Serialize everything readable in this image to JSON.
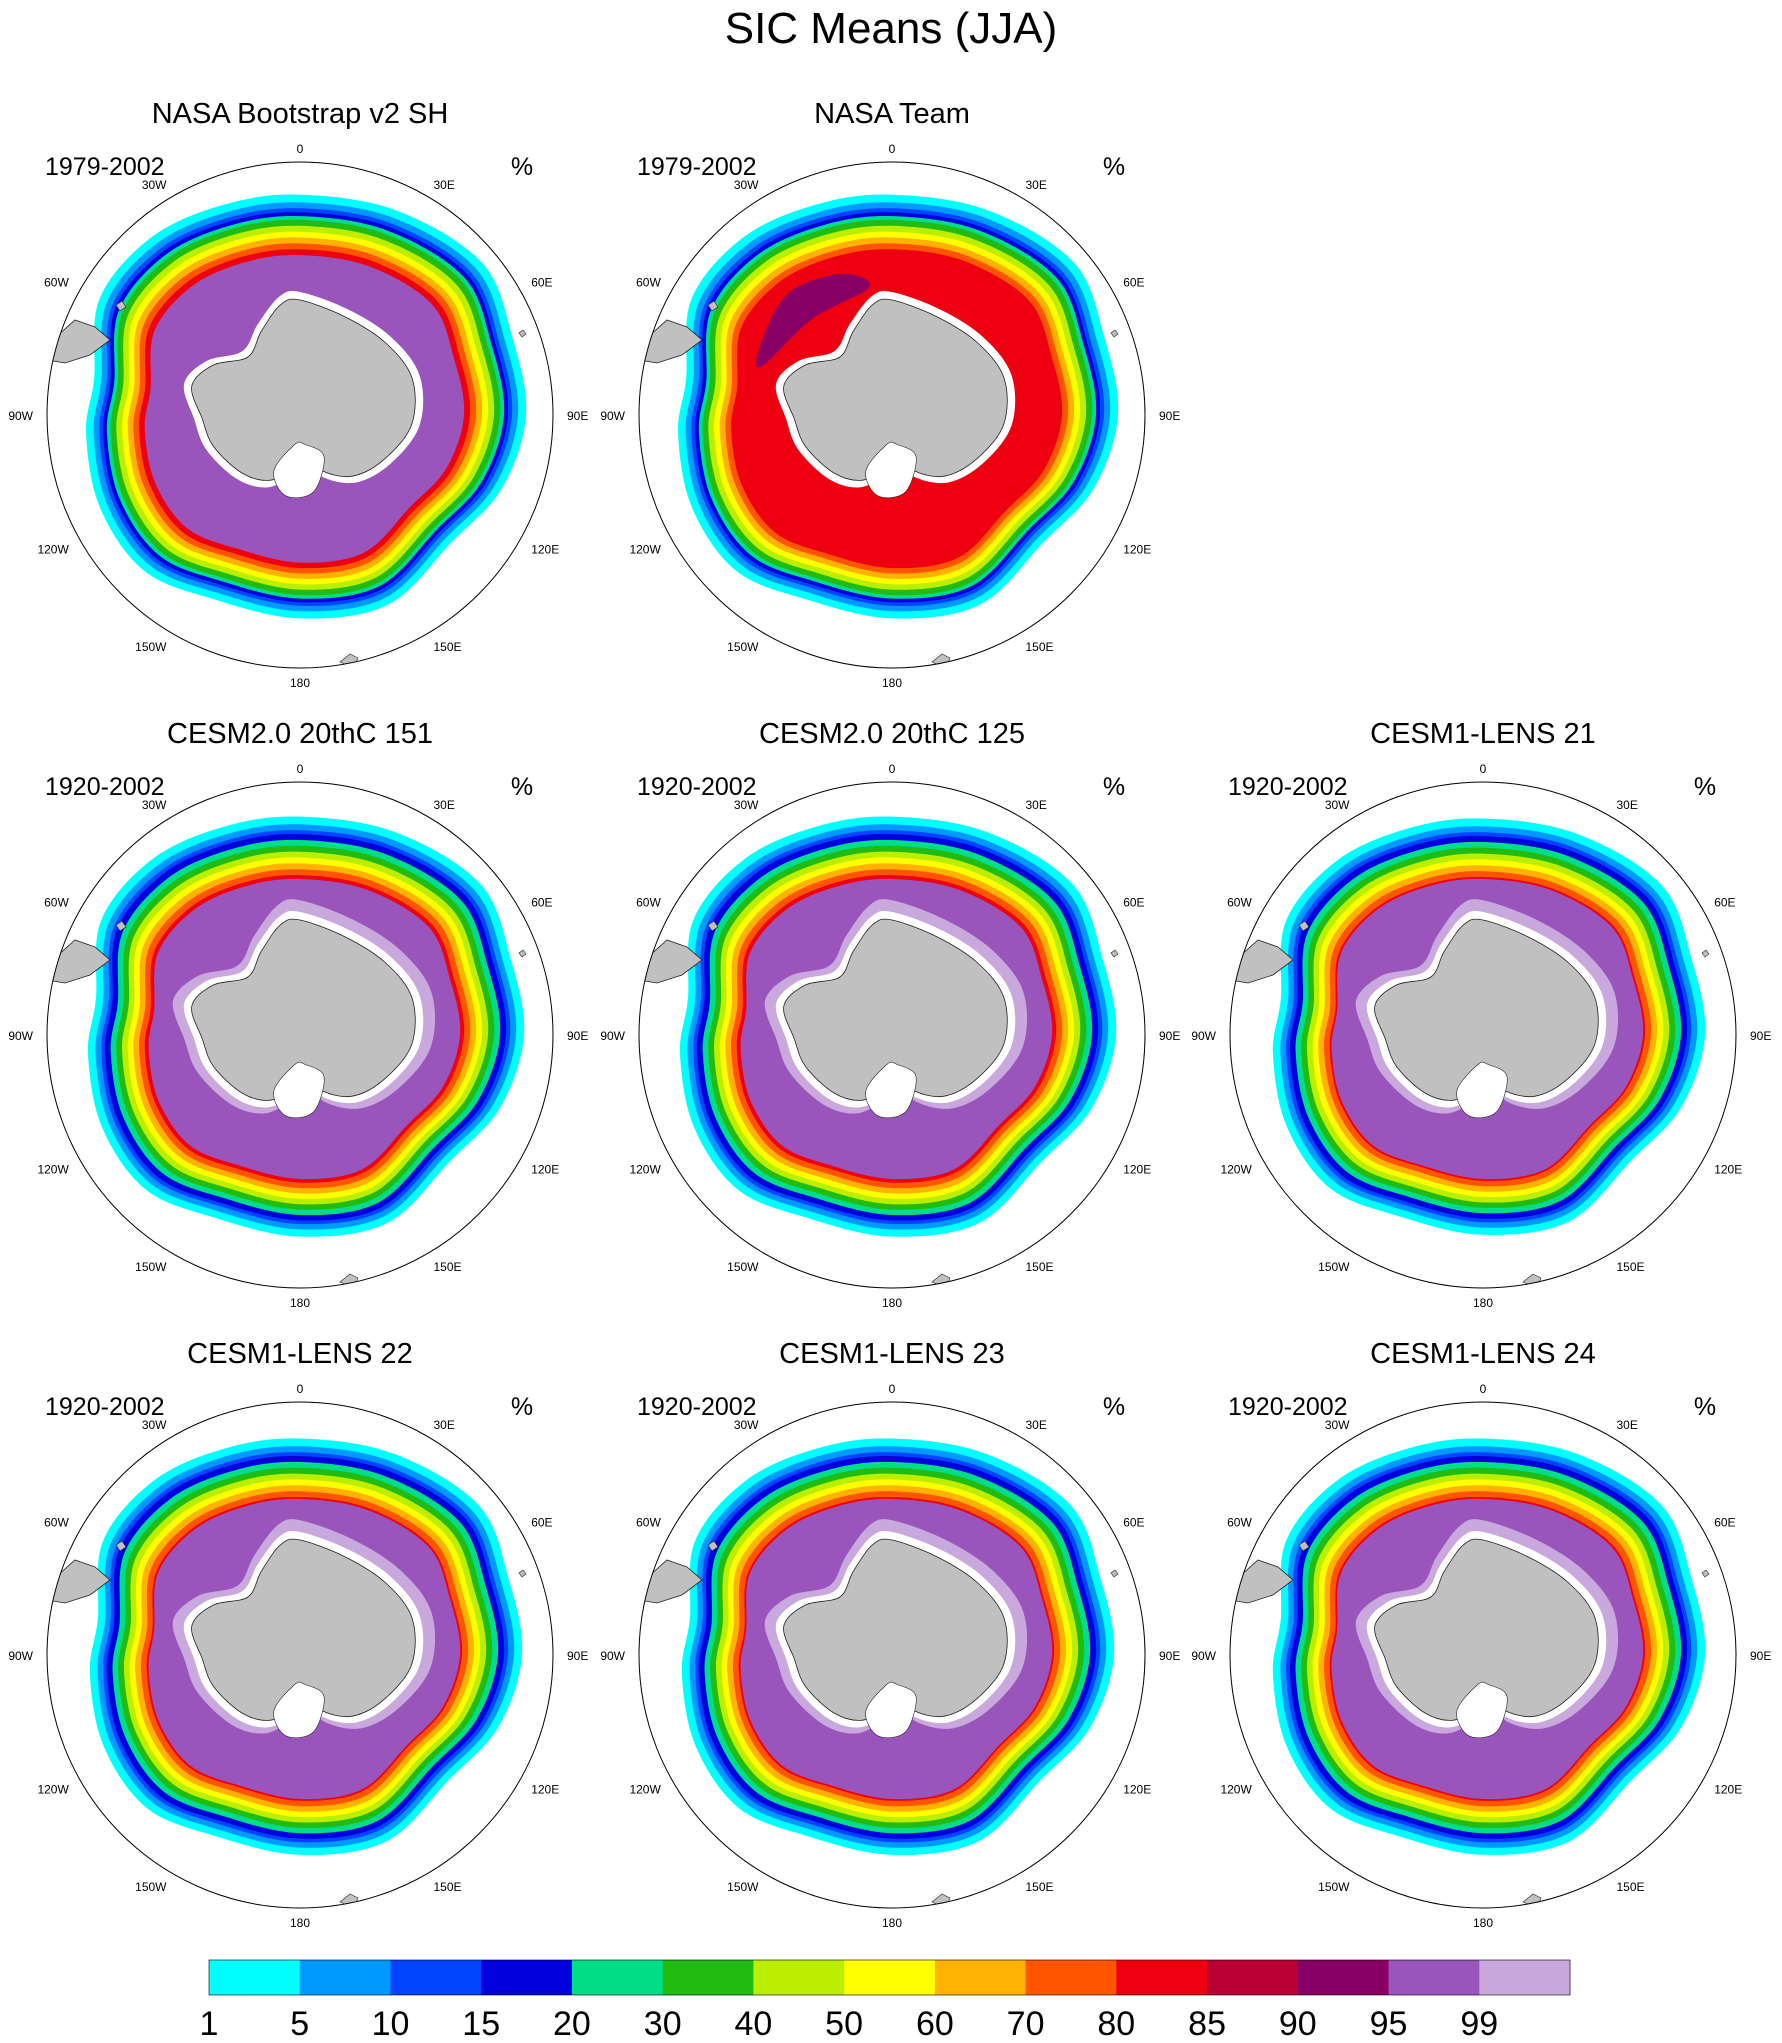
{
  "figure": {
    "title": "SIC Means (JJA)",
    "units": "%"
  },
  "longitude_labels": [
    "0",
    "30E",
    "60E",
    "90E",
    "120E",
    "150E",
    "180",
    "150W",
    "120W",
    "90W",
    "60W",
    "30W"
  ],
  "panels": [
    {
      "title": "NASA Bootstrap v2 SH",
      "period": "1979-2002",
      "style": "bootstrap"
    },
    {
      "title": "NASA Team",
      "period": "1979-2002",
      "style": "team"
    },
    {
      "title": "CESM2.0 20thC 151",
      "period": "1920-2002",
      "style": "cesm2"
    },
    {
      "title": "CESM2.0 20thC 125",
      "period": "1920-2002",
      "style": "cesm2"
    },
    {
      "title": "CESM1-LENS 21",
      "period": "1920-2002",
      "style": "lens"
    },
    {
      "title": "CESM1-LENS 22",
      "period": "1920-2002",
      "style": "lens"
    },
    {
      "title": "CESM1-LENS 23",
      "period": "1920-2002",
      "style": "lens"
    },
    {
      "title": "CESM1-LENS 24",
      "period": "1920-2002",
      "style": "lens"
    }
  ],
  "colorbar": {
    "labels": [
      "1",
      "5",
      "10",
      "15",
      "20",
      "30",
      "40",
      "50",
      "60",
      "70",
      "80",
      "85",
      "90",
      "95",
      "99"
    ],
    "colors": [
      "#00ffff",
      "#0099ff",
      "#0044ff",
      "#0000dd",
      "#00dd88",
      "#22bb11",
      "#bbee00",
      "#ffff00",
      "#ffb300",
      "#ff5500",
      "#ee0011",
      "#bb0033",
      "#880066",
      "#9955bb",
      "#c8a8dd"
    ]
  },
  "land_color": "#c0c0c0"
}
